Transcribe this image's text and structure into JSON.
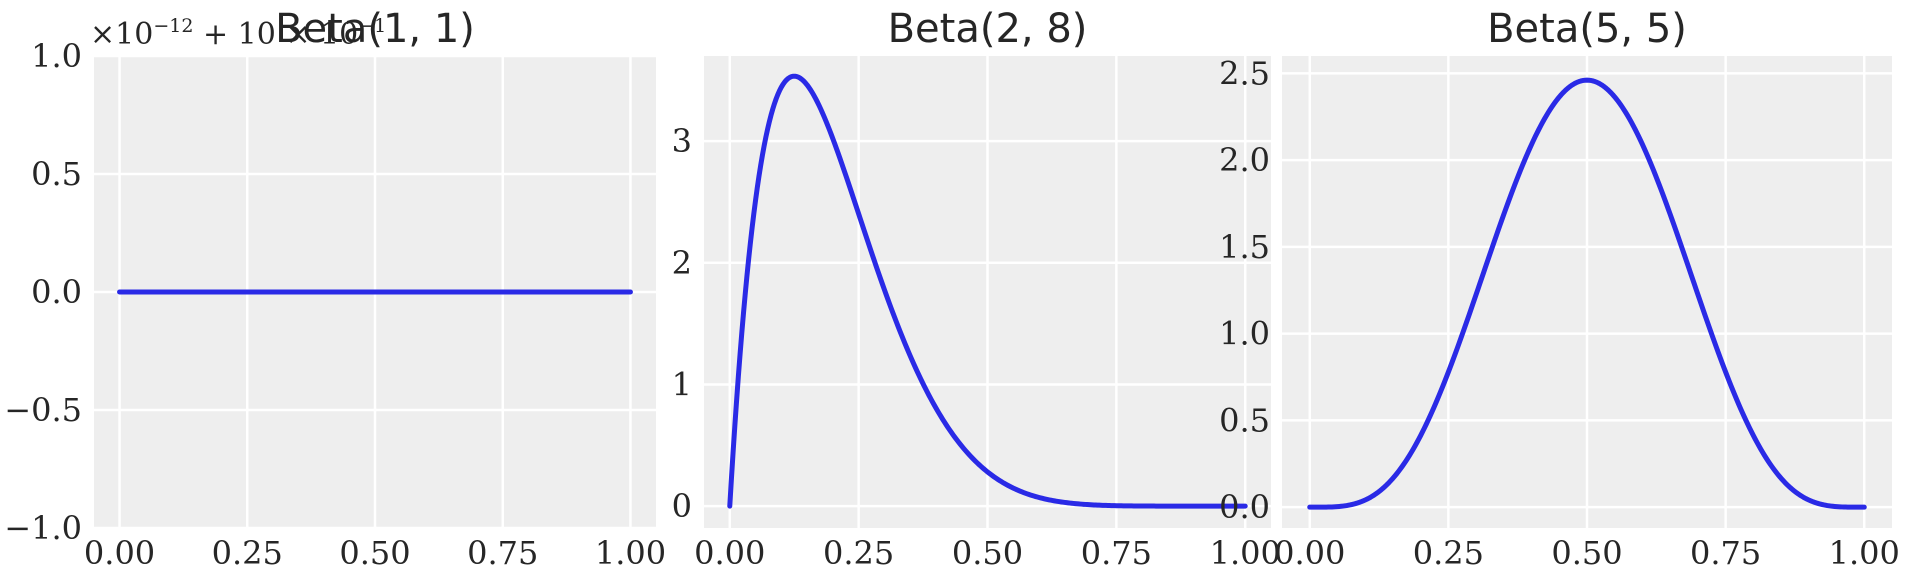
{
  "chart_data": [
    {
      "type": "line",
      "title": "Beta(1, 1)",
      "alpha": 1,
      "beta": 1,
      "x": [
        0.0,
        0.25,
        0.5,
        0.75,
        1.0
      ],
      "y": [
        0,
        0,
        0,
        0,
        0
      ],
      "xlim": [
        -0.05,
        1.05
      ],
      "ylim": [
        -1.0,
        1.0
      ],
      "xticks": [
        0.0,
        0.25,
        0.5,
        0.75,
        1.0
      ],
      "yticks": [
        -1.0,
        -0.5,
        0.0,
        0.5,
        1.0
      ],
      "xtick_labels": [
        "0.00",
        "0.25",
        "0.50",
        "0.75",
        "1.00"
      ],
      "ytick_labels": [
        "−1.0",
        "−0.5",
        "0.0",
        "0.5",
        "1.0"
      ],
      "offset_text": {
        "prefix": "×10",
        "sup1": "−12",
        "middle": " + 10 × 10",
        "sup2": "−1"
      },
      "grid": true,
      "color": "#2a2ae6"
    },
    {
      "type": "line",
      "title": "Beta(2, 8)",
      "alpha": 2,
      "beta": 8,
      "x": [
        0.0,
        0.05,
        0.125,
        0.25,
        0.5,
        0.75,
        1.0
      ],
      "y": [
        0,
        2.5,
        3.52,
        2.67,
        0.31,
        0.0,
        0.0
      ],
      "xlim": [
        -0.05,
        1.05
      ],
      "ylim": [
        -0.18,
        3.7
      ],
      "xticks": [
        0.0,
        0.25,
        0.5,
        0.75,
        1.0
      ],
      "yticks": [
        0,
        1,
        2,
        3
      ],
      "xtick_labels": [
        "0.00",
        "0.25",
        "0.50",
        "0.75",
        "1.00"
      ],
      "ytick_labels": [
        "0",
        "1",
        "2",
        "3"
      ],
      "grid": true,
      "color": "#2a2ae6"
    },
    {
      "type": "line",
      "title": "Beta(5, 5)",
      "alpha": 5,
      "beta": 5,
      "x": [
        0.0,
        0.25,
        0.5,
        0.75,
        1.0
      ],
      "y": [
        0.0,
        1.1,
        2.46,
        1.1,
        0.0
      ],
      "xlim": [
        -0.05,
        1.05
      ],
      "ylim": [
        -0.12,
        2.6
      ],
      "xticks": [
        0.0,
        0.25,
        0.5,
        0.75,
        1.0
      ],
      "yticks": [
        0.0,
        0.5,
        1.0,
        1.5,
        2.0,
        2.5
      ],
      "xtick_labels": [
        "0.00",
        "0.25",
        "0.50",
        "0.75",
        "1.00"
      ],
      "ytick_labels": [
        "0.0",
        "0.5",
        "1.0",
        "1.5",
        "2.0",
        "2.5"
      ],
      "grid": true,
      "color": "#2a2ae6"
    }
  ]
}
